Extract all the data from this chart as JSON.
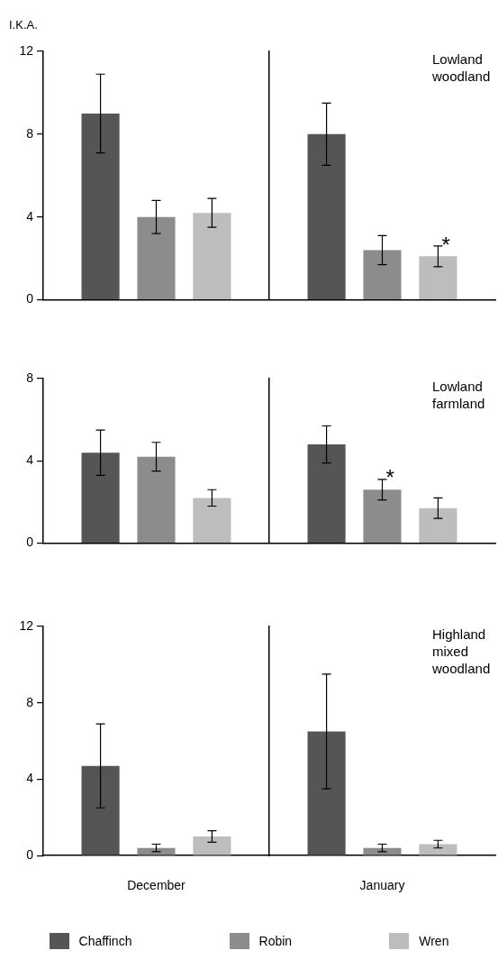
{
  "chart_data": [
    {
      "type": "bar",
      "ylabel": "I.K.A.",
      "categories": [
        null,
        null
      ],
      "ylim": [
        0,
        12
      ],
      "yticks": [
        0,
        4,
        8,
        12
      ],
      "annotations": [
        "Lowland woodland"
      ],
      "series": [
        {
          "color": "#555555",
          "values": [
            9.0,
            8.0
          ],
          "errors": [
            1.9,
            1.5
          ]
        },
        {
          "color": "#8c8c8c",
          "values": [
            4.0,
            2.4
          ],
          "errors": [
            0.8,
            0.7
          ]
        },
        {
          "color": "#bdbdbd",
          "values": [
            4.2,
            2.1
          ],
          "errors": [
            0.7,
            0.5
          ],
          "value_labels": [
            null,
            "*"
          ]
        }
      ]
    },
    {
      "type": "bar",
      "categories": [
        null,
        null
      ],
      "ylim": [
        0,
        8
      ],
      "yticks": [
        0,
        4,
        8
      ],
      "annotations": [
        "Lowland farmland"
      ],
      "series": [
        {
          "color": "#555555",
          "values": [
            4.4,
            4.8
          ],
          "errors": [
            1.1,
            0.9
          ]
        },
        {
          "color": "#8c8c8c",
          "values": [
            4.2,
            2.6
          ],
          "errors": [
            0.7,
            0.5
          ],
          "value_labels": [
            null,
            "*"
          ]
        },
        {
          "color": "#bdbdbd",
          "values": [
            2.2,
            1.7
          ],
          "errors": [
            0.4,
            0.5
          ]
        }
      ]
    },
    {
      "type": "bar",
      "categories": [
        "December",
        "January"
      ],
      "ylim": [
        0,
        12
      ],
      "yticks": [
        0,
        4,
        8,
        12
      ],
      "legend": "bottom",
      "annotations": [
        "Highland mixed woodland"
      ],
      "series": [
        {
          "name": "Chaffinch",
          "color": "#555555",
          "values": [
            4.7,
            6.5
          ],
          "errors": [
            2.2,
            3.0
          ]
        },
        {
          "name": "Robin",
          "color": "#8c8c8c",
          "values": [
            0.4,
            0.4
          ],
          "errors": [
            0.2,
            0.2
          ]
        },
        {
          "name": "Wren",
          "color": "#bdbdbd",
          "values": [
            1.0,
            0.6
          ],
          "errors": [
            0.3,
            0.2
          ]
        }
      ]
    }
  ]
}
